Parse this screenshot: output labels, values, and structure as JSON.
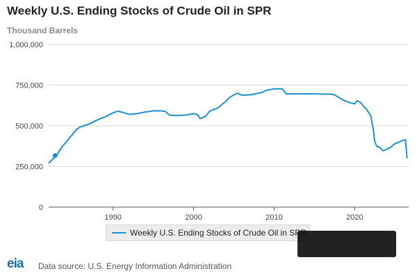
{
  "header": {
    "title": "Weekly U.S. Ending Stocks of Crude Oil in SPR",
    "units": "Thousand Barrels"
  },
  "footer": {
    "logo": "eia",
    "source": "Data source: U.S. Energy Information Administration"
  },
  "colors": {
    "series": "#1f8fd1",
    "grid": "#d6d6d6",
    "axis": "#555555"
  },
  "chart_data": {
    "type": "line",
    "title": "Weekly U.S. Ending Stocks of Crude Oil in SPR",
    "ylabel": "Thousand Barrels",
    "xlabel": "",
    "xlim": [
      1982.0,
      2026.7
    ],
    "ylim": [
      0,
      1000000
    ],
    "yticks": [
      0,
      250000,
      500000,
      750000,
      1000000
    ],
    "ytick_labels": [
      "0",
      "250,000",
      "500,000",
      "750,000",
      "1,000,000"
    ],
    "xticks": [
      1990,
      2000,
      2010,
      2020
    ],
    "xtick_labels": [
      "1990",
      "2000",
      "2010",
      "2020"
    ],
    "grid": true,
    "legend_position": "bottom-center",
    "series": [
      {
        "name": "Weekly U.S. Ending Stocks of Crude Oil in SPR",
        "marker_point": [
          1982.8,
          317000
        ],
        "x": [
          1982.0,
          1982.5,
          1983.0,
          1983.5,
          1984.0,
          1984.5,
          1985.0,
          1985.5,
          1986.0,
          1987.0,
          1988.0,
          1989.0,
          1990.0,
          1990.6,
          1991.0,
          1992.0,
          1993.0,
          1994.0,
          1995.0,
          1996.0,
          1996.5,
          1997.0,
          1998.0,
          1999.0,
          1999.5,
          2000.0,
          2000.5,
          2000.8,
          2001.0,
          2001.5,
          2002.0,
          2002.5,
          2003.0,
          2003.5,
          2004.0,
          2004.5,
          2005.0,
          2005.5,
          2006.0,
          2007.0,
          2008.0,
          2008.5,
          2009.0,
          2010.0,
          2011.0,
          2011.5,
          2012.0,
          2013.0,
          2014.0,
          2015.0,
          2016.0,
          2017.0,
          2017.5,
          2018.0,
          2018.5,
          2019.0,
          2019.5,
          2020.0,
          2020.3,
          2020.8,
          2021.0,
          2021.5,
          2022.0,
          2022.3,
          2022.5,
          2022.8,
          2023.0,
          2023.5,
          2024.0,
          2024.5,
          2025.0,
          2025.5,
          2026.0,
          2026.3,
          2026.5
        ],
        "y": [
          270000,
          295000,
          320000,
          360000,
          390000,
          420000,
          450000,
          480000,
          495000,
          510000,
          535000,
          555000,
          580000,
          590000,
          585000,
          570000,
          575000,
          585000,
          592000,
          592000,
          588000,
          565000,
          563000,
          566000,
          570000,
          575000,
          568000,
          545000,
          548000,
          560000,
          590000,
          600000,
          610000,
          630000,
          650000,
          675000,
          690000,
          700000,
          688000,
          690000,
          700000,
          705000,
          718000,
          727000,
          727000,
          696000,
          696000,
          696000,
          697000,
          696000,
          695000,
          695000,
          690000,
          675000,
          660000,
          650000,
          640000,
          635000,
          655000,
          640000,
          625000,
          600000,
          560000,
          480000,
          400000,
          370000,
          372000,
          347000,
          355000,
          370000,
          390000,
          400000,
          410000,
          415000,
          300000
        ]
      }
    ]
  }
}
